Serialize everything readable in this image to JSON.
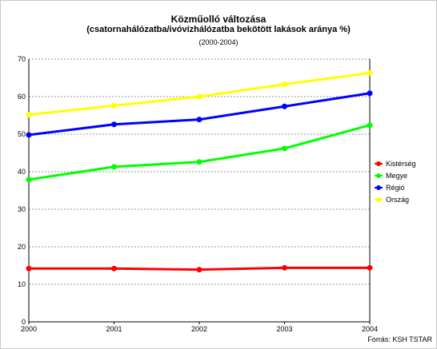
{
  "chart_data": {
    "type": "line",
    "title": "Közműolló változása",
    "subtitle": "(csatornahálózatba/ivóvízhálózatba bekötött lakások aránya %)",
    "period": "(2000-2004)",
    "x": [
      "2000",
      "2001",
      "2002",
      "2003",
      "2004"
    ],
    "y_ticks": [
      "0",
      "10",
      "20",
      "30",
      "40",
      "50",
      "60",
      "70"
    ],
    "ylim": [
      0,
      70
    ],
    "grid": true,
    "legend_position": "right",
    "series": [
      {
        "name": "Kistérség",
        "color": "#ff0000",
        "values": [
          14.2,
          14.2,
          13.9,
          14.4,
          14.4
        ]
      },
      {
        "name": "Megye",
        "color": "#00ff00",
        "values": [
          37.9,
          41.3,
          42.6,
          46.2,
          52.4
        ]
      },
      {
        "name": "Régió",
        "color": "#0000ff",
        "values": [
          49.8,
          52.6,
          53.9,
          57.4,
          60.9
        ]
      },
      {
        "name": "Ország",
        "color": "#ffff00",
        "values": [
          55.2,
          57.6,
          60.0,
          63.3,
          66.3
        ]
      }
    ]
  },
  "footer": {
    "source": "Forrás: KSH TSTAR"
  }
}
